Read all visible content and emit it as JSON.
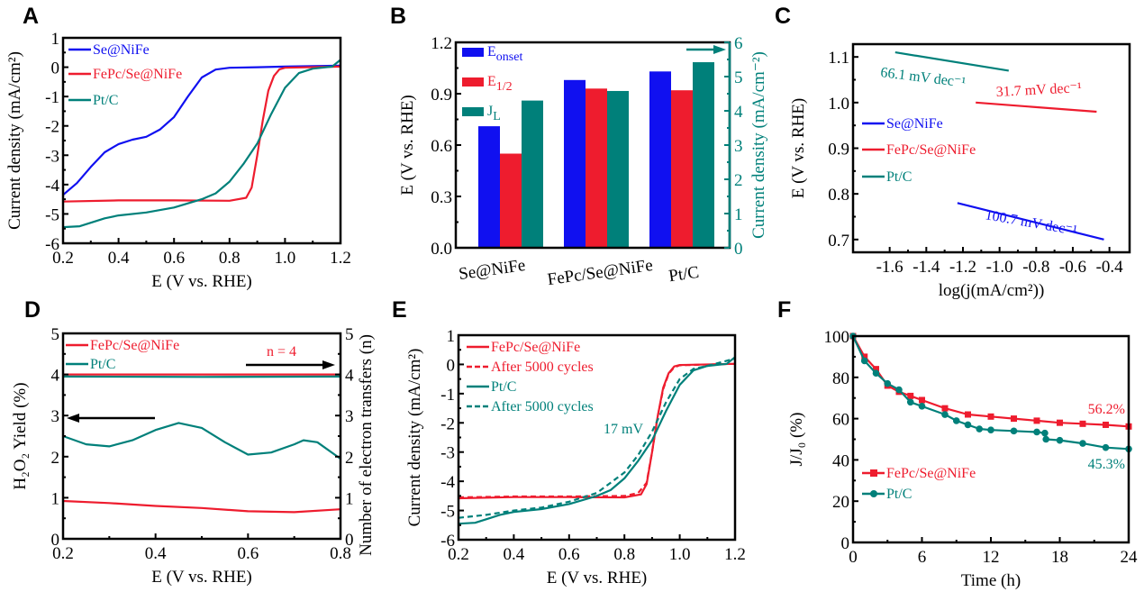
{
  "colors": {
    "blue": "#1010f0",
    "red": "#ee1c2e",
    "teal": "#00807a",
    "axis": "#000000"
  },
  "chart_data": [
    {
      "panel": "A",
      "type": "line",
      "xlabel": "E (V vs. RHE)",
      "ylabel": "Current density (mA/cm²)",
      "xlim": [
        0.2,
        1.2
      ],
      "ylim": [
        -6,
        1
      ],
      "xticks": [
        "0.2",
        "0.4",
        "0.6",
        "0.8",
        "1.0",
        "1.2"
      ],
      "yticks": [
        "-6",
        "-5",
        "-4",
        "-3",
        "-2",
        "-1",
        "0",
        "1"
      ],
      "legend": "top-left",
      "series": [
        {
          "name": "Se@NiFe",
          "color": "#1010f0",
          "style": "solid",
          "points": [
            [
              0.2,
              -4.35
            ],
            [
              0.25,
              -3.95
            ],
            [
              0.3,
              -3.4
            ],
            [
              0.35,
              -2.9
            ],
            [
              0.4,
              -2.62
            ],
            [
              0.45,
              -2.47
            ],
            [
              0.5,
              -2.37
            ],
            [
              0.55,
              -2.12
            ],
            [
              0.6,
              -1.7
            ],
            [
              0.65,
              -1.0
            ],
            [
              0.7,
              -0.35
            ],
            [
              0.75,
              -0.08
            ],
            [
              0.8,
              -0.02
            ],
            [
              0.9,
              0.0
            ],
            [
              1.0,
              0.02
            ],
            [
              1.2,
              0.05
            ]
          ]
        },
        {
          "name": "FePc/Se@NiFe",
          "color": "#ee1c2e",
          "style": "solid",
          "points": [
            [
              0.2,
              -4.58
            ],
            [
              0.4,
              -4.54
            ],
            [
              0.6,
              -4.54
            ],
            [
              0.8,
              -4.55
            ],
            [
              0.86,
              -4.45
            ],
            [
              0.88,
              -4.1
            ],
            [
              0.9,
              -3.0
            ],
            [
              0.92,
              -1.8
            ],
            [
              0.94,
              -0.8
            ],
            [
              0.96,
              -0.3
            ],
            [
              0.98,
              -0.07
            ],
            [
              1.0,
              -0.02
            ],
            [
              1.2,
              0.02
            ]
          ]
        },
        {
          "name": "Pt/C",
          "color": "#00807a",
          "style": "solid",
          "points": [
            [
              0.2,
              -5.45
            ],
            [
              0.26,
              -5.42
            ],
            [
              0.3,
              -5.3
            ],
            [
              0.35,
              -5.15
            ],
            [
              0.4,
              -5.05
            ],
            [
              0.5,
              -4.95
            ],
            [
              0.6,
              -4.78
            ],
            [
              0.7,
              -4.5
            ],
            [
              0.75,
              -4.3
            ],
            [
              0.8,
              -3.9
            ],
            [
              0.85,
              -3.3
            ],
            [
              0.9,
              -2.6
            ],
            [
              0.95,
              -1.6
            ],
            [
              1.0,
              -0.7
            ],
            [
              1.05,
              -0.2
            ],
            [
              1.1,
              -0.05
            ],
            [
              1.17,
              0.02
            ],
            [
              1.2,
              0.25
            ]
          ]
        }
      ]
    },
    {
      "panel": "B",
      "type": "bar",
      "ylabel": "E (V vs. RHE)",
      "ylabel_right": "Current density (mA/cm⁻²)",
      "ylim": [
        0,
        1.2
      ],
      "ylim_right": [
        0,
        6
      ],
      "yticks": [
        "0.0",
        "0.3",
        "0.6",
        "0.9",
        "1.2"
      ],
      "yticks_right": [
        "0",
        "1",
        "2",
        "3",
        "4",
        "5",
        "6"
      ],
      "categories": [
        "Se@NiFe",
        "FePc/Se@NiFe",
        "Pt/C"
      ],
      "legend": "top-left",
      "series": [
        {
          "name": {
            "base": "E",
            "sub": "onset"
          },
          "color": "#1010f0",
          "axis": "left",
          "values": [
            0.71,
            0.98,
            1.03
          ]
        },
        {
          "name": {
            "base": "E",
            "sub": "1/2"
          },
          "color": "#ee1c2e",
          "axis": "left",
          "values": [
            0.55,
            0.93,
            0.92
          ]
        },
        {
          "name": {
            "base": "J",
            "sub": "L"
          },
          "color": "#00807a",
          "axis": "right",
          "values": [
            4.3,
            4.58,
            5.42
          ]
        }
      ]
    },
    {
      "panel": "C",
      "type": "line",
      "xlabel": "log(j(mA/cm²))",
      "ylabel": "E (V vs. RHE)",
      "xlim": [
        -1.8,
        -0.29
      ],
      "ylim": [
        0.672,
        1.128
      ],
      "xticks": [
        "-1.6",
        "-1.4",
        "-1.2",
        "-1.0",
        "-0.8",
        "-0.6",
        "-0.4"
      ],
      "yticks": [
        "0.7",
        "0.8",
        "0.9",
        "1.0",
        "1.1"
      ],
      "legend": "center-left",
      "series": [
        {
          "name": "Se@NiFe",
          "color": "#1010f0",
          "style": "solid",
          "points": [
            [
              -1.23,
              0.78
            ],
            [
              -0.43,
              0.7
            ]
          ]
        },
        {
          "name": "FePc/Se@NiFe",
          "color": "#ee1c2e",
          "style": "solid",
          "points": [
            [
              -1.13,
              1.0
            ],
            [
              -0.47,
              0.98
            ]
          ]
        },
        {
          "name": "Pt/C",
          "color": "#00807a",
          "style": "solid",
          "points": [
            [
              -1.57,
              1.11
            ],
            [
              -0.95,
              1.07
            ]
          ]
        }
      ],
      "annotations": [
        {
          "text": "66.1 mV dec⁻¹",
          "color": "#00807a"
        },
        {
          "text": "31.7 mV dec⁻¹",
          "color": "#ee1c2e"
        },
        {
          "text": "100.7 mV dec⁻¹",
          "color": "#1010f0"
        }
      ]
    },
    {
      "panel": "D",
      "type": "line",
      "xlabel": "E (V vs. RHE)",
      "ylabel": "H₂O₂ Yield (%)",
      "ylabel_right": "Number of electron transfers (n)",
      "xlim": [
        0.2,
        0.8
      ],
      "ylim": [
        0,
        5
      ],
      "ylim_right": [
        0,
        5
      ],
      "xticks": [
        "0.2",
        "0.4",
        "0.6",
        "0.8"
      ],
      "yticks": [
        "0",
        "1",
        "2",
        "3",
        "4",
        "5"
      ],
      "yticks_right": [
        "0",
        "1",
        "2",
        "3",
        "4",
        "5"
      ],
      "legend": "top-left",
      "series": [
        {
          "name": "FePc/Se@NiFe",
          "color": "#ee1c2e",
          "style": "solid",
          "quantity": "H2O2 yield",
          "points": [
            [
              0.2,
              0.92
            ],
            [
              0.3,
              0.87
            ],
            [
              0.4,
              0.8
            ],
            [
              0.5,
              0.75
            ],
            [
              0.6,
              0.67
            ],
            [
              0.7,
              0.65
            ],
            [
              0.8,
              0.72
            ]
          ]
        },
        {
          "name": "Pt/C",
          "color": "#00807a",
          "style": "solid",
          "quantity": "H2O2 yield",
          "points": [
            [
              0.2,
              2.5
            ],
            [
              0.25,
              2.3
            ],
            [
              0.3,
              2.25
            ],
            [
              0.35,
              2.4
            ],
            [
              0.4,
              2.65
            ],
            [
              0.45,
              2.82
            ],
            [
              0.5,
              2.7
            ],
            [
              0.55,
              2.35
            ],
            [
              0.6,
              2.05
            ],
            [
              0.65,
              2.1
            ],
            [
              0.7,
              2.3
            ],
            [
              0.72,
              2.4
            ],
            [
              0.75,
              2.35
            ],
            [
              0.8,
              1.95
            ]
          ]
        },
        {
          "name": "FePc/Se@NiFe",
          "color": "#ee1c2e",
          "style": "solid",
          "quantity": "n",
          "axis": "right",
          "points": [
            [
              0.2,
              4.0
            ],
            [
              0.8,
              4.0
            ]
          ]
        },
        {
          "name": "Pt/C",
          "color": "#00807a",
          "style": "solid",
          "quantity": "n",
          "axis": "right",
          "points": [
            [
              0.2,
              3.95
            ],
            [
              0.5,
              3.94
            ],
            [
              0.8,
              3.95
            ]
          ]
        }
      ],
      "annotations": [
        {
          "text": "n = 4",
          "color": "#ee1c2e"
        }
      ]
    },
    {
      "panel": "E",
      "type": "line",
      "xlabel": "E (V vs. RHE)",
      "ylabel": "Current density (mA/cm²)",
      "xlim": [
        0.2,
        1.2
      ],
      "ylim": [
        -6,
        1
      ],
      "xticks": [
        "0.2",
        "0.4",
        "0.6",
        "0.8",
        "1.0",
        "1.2"
      ],
      "yticks": [
        "-6",
        "-5",
        "-4",
        "-3",
        "-2",
        "-1",
        "0",
        "1"
      ],
      "legend": "top-left",
      "series": [
        {
          "name": "FePc/Se@NiFe",
          "color": "#ee1c2e",
          "style": "solid",
          "points": [
            [
              0.2,
              -4.58
            ],
            [
              0.4,
              -4.54
            ],
            [
              0.6,
              -4.54
            ],
            [
              0.8,
              -4.55
            ],
            [
              0.86,
              -4.45
            ],
            [
              0.88,
              -4.1
            ],
            [
              0.9,
              -3.0
            ],
            [
              0.92,
              -1.8
            ],
            [
              0.94,
              -0.8
            ],
            [
              0.96,
              -0.3
            ],
            [
              0.98,
              -0.07
            ],
            [
              1.0,
              -0.02
            ],
            [
              1.2,
              0.02
            ]
          ]
        },
        {
          "name": "After 5000 cycles",
          "color": "#ee1c2e",
          "style": "dashed",
          "points": [
            [
              0.2,
              -4.55
            ],
            [
              0.4,
              -4.52
            ],
            [
              0.6,
              -4.52
            ],
            [
              0.8,
              -4.5
            ],
            [
              0.85,
              -4.4
            ],
            [
              0.88,
              -4.05
            ],
            [
              0.9,
              -3.0
            ],
            [
              0.92,
              -1.8
            ],
            [
              0.94,
              -0.85
            ],
            [
              0.96,
              -0.32
            ],
            [
              0.98,
              -0.1
            ],
            [
              1.0,
              -0.03
            ],
            [
              1.2,
              0.02
            ]
          ]
        },
        {
          "name": "Pt/C",
          "color": "#00807a",
          "style": "solid",
          "points": [
            [
              0.2,
              -5.45
            ],
            [
              0.26,
              -5.42
            ],
            [
              0.3,
              -5.3
            ],
            [
              0.35,
              -5.15
            ],
            [
              0.4,
              -5.05
            ],
            [
              0.5,
              -4.95
            ],
            [
              0.6,
              -4.78
            ],
            [
              0.7,
              -4.5
            ],
            [
              0.75,
              -4.3
            ],
            [
              0.8,
              -3.9
            ],
            [
              0.85,
              -3.3
            ],
            [
              0.9,
              -2.6
            ],
            [
              0.95,
              -1.6
            ],
            [
              1.0,
              -0.7
            ],
            [
              1.05,
              -0.2
            ],
            [
              1.1,
              -0.05
            ],
            [
              1.17,
              0.02
            ],
            [
              1.2,
              0.25
            ]
          ]
        },
        {
          "name": "After 5000 cycles",
          "color": "#00807a",
          "style": "dashed",
          "points": [
            [
              0.2,
              -5.25
            ],
            [
              0.3,
              -5.15
            ],
            [
              0.4,
              -5.0
            ],
            [
              0.5,
              -4.9
            ],
            [
              0.6,
              -4.7
            ],
            [
              0.7,
              -4.4
            ],
            [
              0.8,
              -3.7
            ],
            [
              0.85,
              -3.1
            ],
            [
              0.9,
              -2.3
            ],
            [
              0.95,
              -1.3
            ],
            [
              1.0,
              -0.5
            ],
            [
              1.05,
              -0.15
            ],
            [
              1.1,
              -0.05
            ],
            [
              1.2,
              0.2
            ]
          ]
        }
      ],
      "annotations": [
        {
          "text": "17 mV",
          "color": "#00807a"
        }
      ]
    },
    {
      "panel": "F",
      "type": "line",
      "xlabel": "Time (h)",
      "ylabel": "J/J₀ (%)",
      "xlim": [
        0,
        24
      ],
      "ylim": [
        0,
        100
      ],
      "xticks": [
        "0",
        "6",
        "12",
        "18",
        "24"
      ],
      "yticks": [
        "0",
        "20",
        "40",
        "60",
        "80",
        "100"
      ],
      "legend": "bottom-left",
      "series": [
        {
          "name": "FePc/Se@NiFe",
          "color": "#ee1c2e",
          "style": "solid",
          "marker": "square",
          "points": [
            [
              0,
              100
            ],
            [
              1,
              90
            ],
            [
              2,
              84
            ],
            [
              3,
              76
            ],
            [
              4,
              73
            ],
            [
              5,
              71
            ],
            [
              6,
              69
            ],
            [
              8,
              65
            ],
            [
              10,
              62
            ],
            [
              12,
              61
            ],
            [
              14,
              60
            ],
            [
              16,
              59
            ],
            [
              18,
              58
            ],
            [
              20,
              57.5
            ],
            [
              22,
              57
            ],
            [
              24,
              56.2
            ]
          ]
        },
        {
          "name": "Pt/C",
          "color": "#00807a",
          "style": "solid",
          "marker": "circle",
          "points": [
            [
              0,
              100
            ],
            [
              1,
              88
            ],
            [
              2,
              82
            ],
            [
              3,
              77
            ],
            [
              4,
              74
            ],
            [
              5,
              68
            ],
            [
              6,
              66
            ],
            [
              8,
              62
            ],
            [
              9,
              59
            ],
            [
              10,
              57
            ],
            [
              11,
              55
            ],
            [
              12,
              54.5
            ],
            [
              14,
              54
            ],
            [
              16,
              53.5
            ],
            [
              16.7,
              53
            ],
            [
              16.8,
              50
            ],
            [
              18,
              49.5
            ],
            [
              20,
              48
            ],
            [
              22,
              46
            ],
            [
              24,
              45.3
            ]
          ]
        }
      ],
      "annotations": [
        {
          "text": "56.2%",
          "color": "#ee1c2e"
        },
        {
          "text": "45.3%",
          "color": "#00807a"
        }
      ]
    }
  ]
}
